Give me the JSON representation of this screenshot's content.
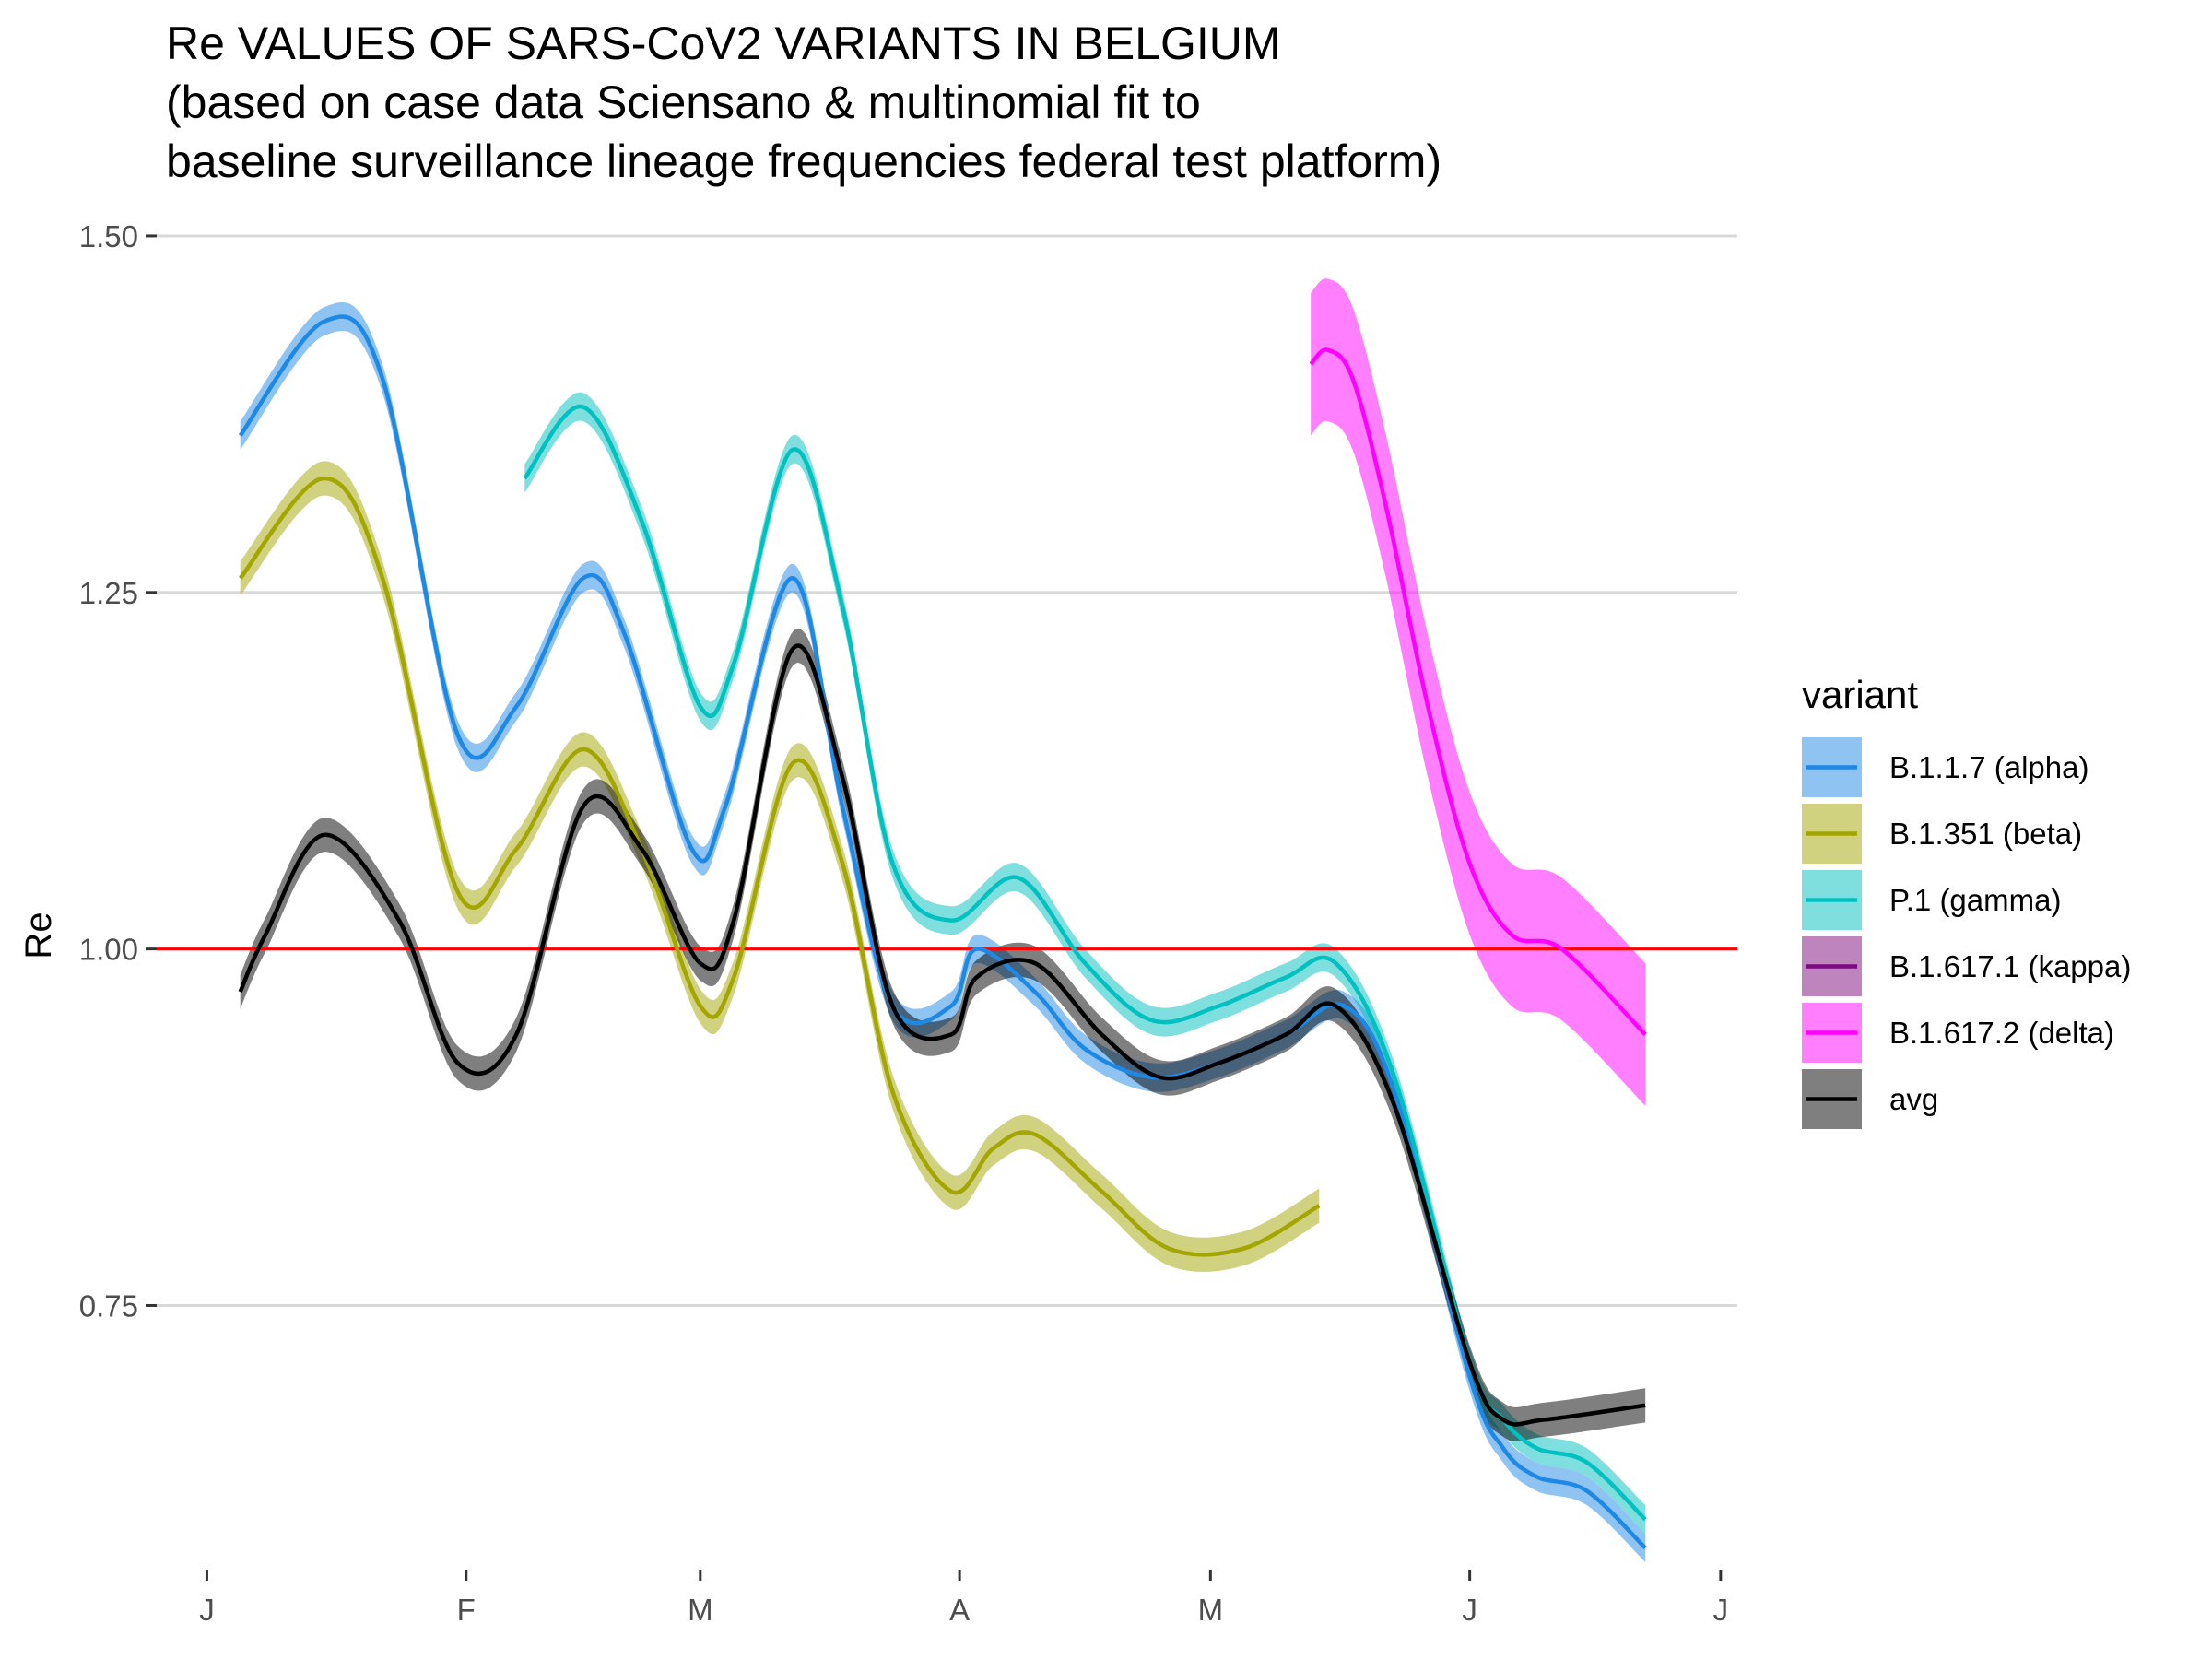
{
  "chart_data": {
    "type": "line",
    "title": [
      "Re VALUES OF SARS-CoV2 VARIANTS IN BELGIUM",
      "(based on case data Sciensano & multinomial fit to",
      "baseline surveillance lineage frequencies federal test platform)"
    ],
    "ylabel": "Re",
    "xlabel": "",
    "ylim": [
      0.57,
      1.52
    ],
    "yticks": [
      0.75,
      1.0,
      1.25,
      1.5
    ],
    "ytick_labels": [
      "0.75",
      "1.00",
      "1.25",
      "1.50"
    ],
    "xlim": [
      "2020-12-26",
      "2021-07-03"
    ],
    "xticks": [
      "2021-01-01",
      "2021-02-01",
      "2021-03-01",
      "2021-04-01",
      "2021-05-01",
      "2021-06-01",
      "2021-07-01"
    ],
    "xtick_labels": [
      "J",
      "F",
      "M",
      "A",
      "M",
      "J",
      "J"
    ],
    "grid": "horizontal major",
    "hline": {
      "y": 1.0,
      "color": "#ff0000"
    },
    "legend": {
      "title": "variant",
      "position": "right"
    },
    "series": [
      {
        "name": "B.1.1.7 (alpha)",
        "color": "#1e88e5",
        "x": [
          "2021-01-05",
          "2021-01-15",
          "2021-01-22",
          "2021-01-31",
          "2021-02-07",
          "2021-02-15",
          "2021-02-20",
          "2021-02-28",
          "2021-03-04",
          "2021-03-12",
          "2021-03-18",
          "2021-03-24",
          "2021-03-31",
          "2021-04-03",
          "2021-04-10",
          "2021-04-16",
          "2021-04-24",
          "2021-05-02",
          "2021-05-10",
          "2021-05-17",
          "2021-05-23",
          "2021-06-01",
          "2021-06-05",
          "2021-06-09",
          "2021-06-15",
          "2021-06-22"
        ],
        "y": [
          1.36,
          1.44,
          1.4,
          1.15,
          1.17,
          1.26,
          1.22,
          1.07,
          1.1,
          1.26,
          1.1,
          0.96,
          0.96,
          1.0,
          0.97,
          0.93,
          0.91,
          0.92,
          0.94,
          0.96,
          0.9,
          0.7,
          0.65,
          0.63,
          0.62,
          0.58
        ],
        "band": 0.01
      },
      {
        "name": "B.1.351 (beta)",
        "color": "#a3a500",
        "x": [
          "2021-01-05",
          "2021-01-15",
          "2021-01-22",
          "2021-01-31",
          "2021-02-07",
          "2021-02-15",
          "2021-02-22",
          "2021-03-01",
          "2021-03-05",
          "2021-03-12",
          "2021-03-18",
          "2021-03-24",
          "2021-03-31",
          "2021-04-05",
          "2021-04-10",
          "2021-04-18",
          "2021-04-26",
          "2021-05-05",
          "2021-05-14"
        ],
        "y": [
          1.26,
          1.33,
          1.26,
          1.04,
          1.07,
          1.14,
          1.07,
          0.96,
          0.98,
          1.13,
          1.06,
          0.9,
          0.83,
          0.86,
          0.87,
          0.83,
          0.79,
          0.79,
          0.82
        ],
        "band": 0.012
      },
      {
        "name": "P.1 (gamma)",
        "color": "#00c0c0",
        "x": [
          "2021-02-08",
          "2021-02-15",
          "2021-02-22",
          "2021-03-01",
          "2021-03-05",
          "2021-03-12",
          "2021-03-18",
          "2021-03-24",
          "2021-03-31",
          "2021-04-08",
          "2021-04-16",
          "2021-04-24",
          "2021-05-02",
          "2021-05-10",
          "2021-05-16",
          "2021-05-23",
          "2021-06-01",
          "2021-06-05",
          "2021-06-09",
          "2021-06-15",
          "2021-06-22"
        ],
        "y": [
          1.33,
          1.38,
          1.3,
          1.17,
          1.2,
          1.35,
          1.24,
          1.06,
          1.02,
          1.05,
          0.99,
          0.95,
          0.96,
          0.98,
          0.99,
          0.91,
          0.71,
          0.67,
          0.65,
          0.64,
          0.6
        ],
        "band": 0.01
      },
      {
        "name": "B.1.617.1 (kappa)",
        "color": "#7b0a7d",
        "x": [],
        "y": [],
        "band": 0.02
      },
      {
        "name": "B.1.617.2 (delta)",
        "color": "#ff00ff",
        "x": [
          "2021-05-13",
          "2021-05-15",
          "2021-05-18",
          "2021-05-22",
          "2021-05-27",
          "2021-06-01",
          "2021-06-06",
          "2021-06-12",
          "2021-06-22"
        ],
        "y": [
          1.41,
          1.42,
          1.4,
          1.31,
          1.17,
          1.06,
          1.01,
          1.0,
          0.94
        ],
        "band": 0.05
      },
      {
        "name": "avg",
        "color": "#000000",
        "x": [
          "2021-01-05",
          "2021-01-08",
          "2021-01-15",
          "2021-01-24",
          "2021-01-31",
          "2021-02-07",
          "2021-02-15",
          "2021-02-22",
          "2021-03-01",
          "2021-03-05",
          "2021-03-12",
          "2021-03-18",
          "2021-03-24",
          "2021-03-31",
          "2021-04-03",
          "2021-04-10",
          "2021-04-18",
          "2021-04-25",
          "2021-05-02",
          "2021-05-10",
          "2021-05-16",
          "2021-05-23",
          "2021-06-01",
          "2021-06-05",
          "2021-06-10",
          "2021-06-22"
        ],
        "y": [
          0.97,
          1.01,
          1.08,
          1.02,
          0.92,
          0.94,
          1.1,
          1.07,
          0.99,
          1.02,
          1.21,
          1.12,
          0.96,
          0.94,
          0.98,
          0.99,
          0.94,
          0.91,
          0.92,
          0.94,
          0.96,
          0.89,
          0.71,
          0.67,
          0.67,
          0.68
        ],
        "band": 0.012
      }
    ]
  }
}
